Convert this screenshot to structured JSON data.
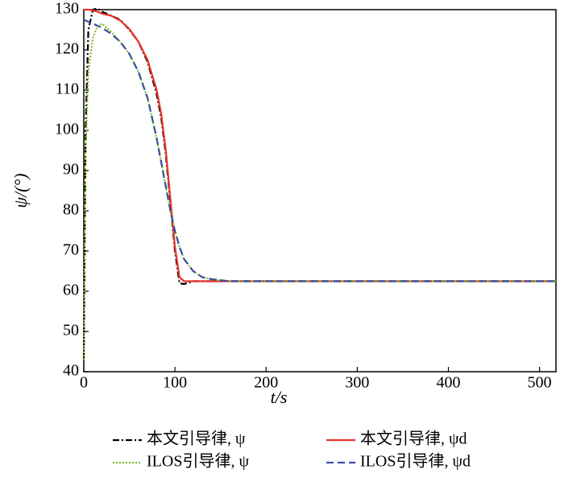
{
  "chart_data": {
    "type": "line",
    "xlabel": "t/s",
    "ylabel": "ψ/(°)",
    "xlim": [
      0,
      518
    ],
    "ylim": [
      40,
      130
    ],
    "xticks": [
      0,
      100,
      200,
      300,
      400,
      500
    ],
    "yticks": [
      40,
      50,
      60,
      70,
      80,
      90,
      100,
      110,
      120,
      130
    ],
    "x": [
      0,
      2,
      5,
      10,
      15,
      20,
      30,
      40,
      50,
      60,
      70,
      80,
      85,
      90,
      95,
      100,
      105,
      110,
      120,
      130,
      140,
      160,
      200,
      300,
      400,
      518
    ],
    "series": [
      {
        "name": "本文引导律, ψ",
        "color": "#000000",
        "dash": "8,3,2,3",
        "values": [
          43,
          100,
          125,
          130,
          130.3,
          129.5,
          128.5,
          127.5,
          125,
          122,
          117,
          109,
          103,
          94,
          82,
          70,
          62,
          61.8,
          62.5,
          62.5,
          62.5,
          62.5,
          62.5,
          62.5,
          62.5,
          62.5
        ]
      },
      {
        "name": "本文引导律, ψd",
        "color": "#e8322a",
        "dash": "none",
        "values": [
          130,
          130,
          130,
          129.8,
          129.5,
          129,
          128.5,
          127.3,
          125.2,
          122,
          117.5,
          110,
          104,
          95,
          83,
          71,
          63.5,
          62.5,
          62.5,
          62.5,
          62.5,
          62.5,
          62.5,
          62.5,
          62.5,
          62.5
        ]
      },
      {
        "name": "ILOS引导律, ψ",
        "color": "#7cbb2a",
        "dash": "2,2",
        "values": [
          43,
          95,
          115,
          123,
          126,
          126.5,
          124.5,
          122,
          119,
          114.5,
          108,
          98,
          92,
          86,
          80,
          75,
          71,
          68,
          65,
          63.5,
          63,
          62.5,
          62.5,
          62.5,
          62.5,
          62.5
        ]
      },
      {
        "name": "ILOS引导律, ψd",
        "color": "#3a4fa0",
        "dash": "9,5",
        "values": [
          127.5,
          127.3,
          127,
          126.5,
          126,
          125.5,
          124,
          122,
          119,
          114.5,
          108,
          98,
          92,
          86,
          80,
          75,
          71,
          68,
          65,
          63.5,
          63,
          62.5,
          62.5,
          62.5,
          62.5,
          62.5
        ]
      }
    ]
  }
}
